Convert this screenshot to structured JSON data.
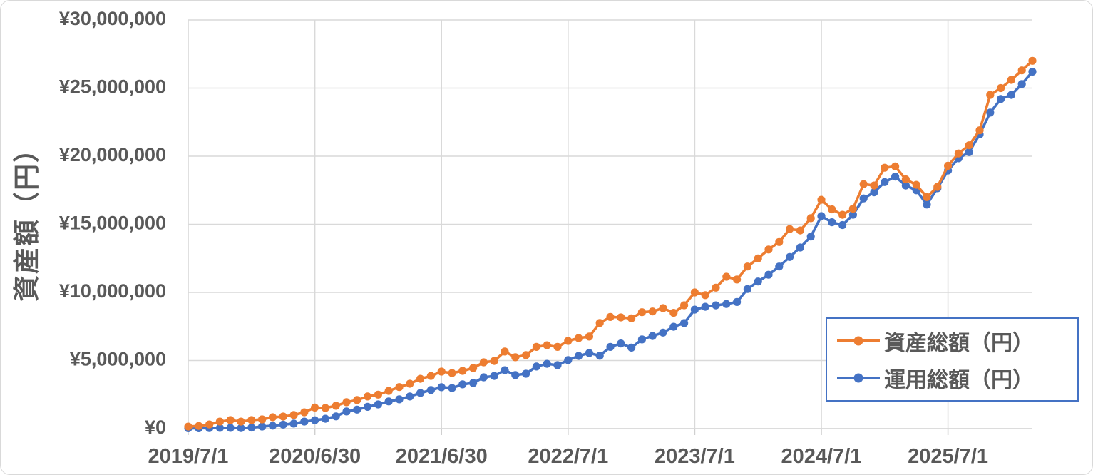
{
  "colors": {
    "background": "#FFFFFF",
    "grid": "#D9D9D9",
    "axis_line": "#D0D0D0",
    "text": "#595959",
    "legend_border": "#4472C4",
    "series_orange": "#ED7D31",
    "series_blue": "#4472C4"
  },
  "chart_data": {
    "type": "line",
    "title": "",
    "xlabel": "",
    "ylabel": "資産額（円）",
    "ylim": [
      0,
      30000000
    ],
    "grid": true,
    "legend_position": "inside-right",
    "marker": "circle",
    "y_ticks": [
      {
        "value": 0,
        "label": "¥0"
      },
      {
        "value": 5000000,
        "label": "¥5,000,000"
      },
      {
        "value": 10000000,
        "label": "¥10,000,000"
      },
      {
        "value": 15000000,
        "label": "¥15,000,000"
      },
      {
        "value": 20000000,
        "label": "¥20,000,000"
      },
      {
        "value": 25000000,
        "label": "¥25,000,000"
      },
      {
        "value": 30000000,
        "label": "¥30,000,000"
      }
    ],
    "x_ticks": [
      {
        "index": 0,
        "label": "2019/7/1"
      },
      {
        "index": 12,
        "label": "2020/6/30"
      },
      {
        "index": 24,
        "label": "2021/6/30"
      },
      {
        "index": 36,
        "label": "2022/7/1"
      },
      {
        "index": 48,
        "label": "2023/7/1"
      },
      {
        "index": 60,
        "label": "2024/7/1"
      },
      {
        "index": 72,
        "label": "2025/7/1"
      }
    ],
    "months": [
      "2019/7",
      "2019/8",
      "2019/9",
      "2019/10",
      "2019/11",
      "2019/12",
      "2020/1",
      "2020/2",
      "2020/3",
      "2020/4",
      "2020/5",
      "2020/6",
      "2020/7",
      "2020/8",
      "2020/9",
      "2020/10",
      "2020/11",
      "2020/12",
      "2021/1",
      "2021/2",
      "2021/3",
      "2021/4",
      "2021/5",
      "2021/6",
      "2021/7",
      "2021/8",
      "2021/9",
      "2021/10",
      "2021/11",
      "2021/12",
      "2022/1",
      "2022/2",
      "2022/3",
      "2022/4",
      "2022/5",
      "2022/6",
      "2022/7",
      "2022/8",
      "2022/9",
      "2022/10",
      "2022/11",
      "2022/12",
      "2023/1",
      "2023/2",
      "2023/3",
      "2023/4",
      "2023/5",
      "2023/6",
      "2023/7",
      "2023/8",
      "2023/9",
      "2023/10",
      "2023/11",
      "2023/12",
      "2024/1",
      "2024/2",
      "2024/3",
      "2024/4",
      "2024/5",
      "2024/6",
      "2024/7",
      "2024/8",
      "2024/9",
      "2024/10",
      "2024/11",
      "2024/12",
      "2025/1",
      "2025/2",
      "2025/3",
      "2025/4",
      "2025/5",
      "2025/6",
      "2025/7",
      "2025/8",
      "2025/9",
      "2025/10",
      "2025/11",
      "2025/12",
      "2026/1",
      "2026/2",
      "2026/3"
    ],
    "series": [
      {
        "name": "資産総額（円）",
        "color": "#ED7D31",
        "values": [
          150000,
          200000,
          310000,
          520000,
          630000,
          520000,
          630000,
          680000,
          840000,
          890000,
          1000000,
          1200000,
          1550000,
          1520000,
          1680000,
          1940000,
          2100000,
          2360000,
          2500000,
          2770000,
          3050000,
          3300000,
          3660000,
          3870000,
          4190000,
          4080000,
          4240000,
          4450000,
          4870000,
          4970000,
          5660000,
          5240000,
          5400000,
          6000000,
          6120000,
          6000000,
          6440000,
          6650000,
          6760000,
          7760000,
          8200000,
          8170000,
          8100000,
          8550000,
          8600000,
          8850000,
          8500000,
          9060000,
          10000000,
          9800000,
          10350000,
          11150000,
          10950000,
          11900000,
          12500000,
          13150000,
          13700000,
          14650000,
          14550000,
          15450000,
          16800000,
          16100000,
          15700000,
          16150000,
          17950000,
          17850000,
          19150000,
          19250000,
          18300000,
          17900000,
          17000000,
          17750000,
          19300000,
          20200000,
          20800000,
          21900000,
          24500000,
          25000000,
          25600000,
          26300000,
          27000000
        ]
      },
      {
        "name": "運用総額（円）",
        "color": "#4472C4",
        "values": [
          30000,
          30000,
          40000,
          60000,
          60000,
          40000,
          80000,
          150000,
          220000,
          300000,
          370000,
          520000,
          620000,
          730000,
          900000,
          1260000,
          1400000,
          1600000,
          1780000,
          2000000,
          2150000,
          2360000,
          2620000,
          2830000,
          3040000,
          2980000,
          3250000,
          3350000,
          3770000,
          3870000,
          4290000,
          3930000,
          4030000,
          4560000,
          4760000,
          4660000,
          5030000,
          5340000,
          5550000,
          5350000,
          6000000,
          6250000,
          5950000,
          6550000,
          6800000,
          7050000,
          7480000,
          7750000,
          8740000,
          8950000,
          9050000,
          9150000,
          9300000,
          10250000,
          10800000,
          11300000,
          11900000,
          12600000,
          13300000,
          14100000,
          15600000,
          15150000,
          14950000,
          15700000,
          16900000,
          17350000,
          18100000,
          18500000,
          17850000,
          17500000,
          16450000,
          17650000,
          18950000,
          19850000,
          20300000,
          21600000,
          23200000,
          24200000,
          24500000,
          25300000,
          26200000
        ]
      }
    ]
  }
}
